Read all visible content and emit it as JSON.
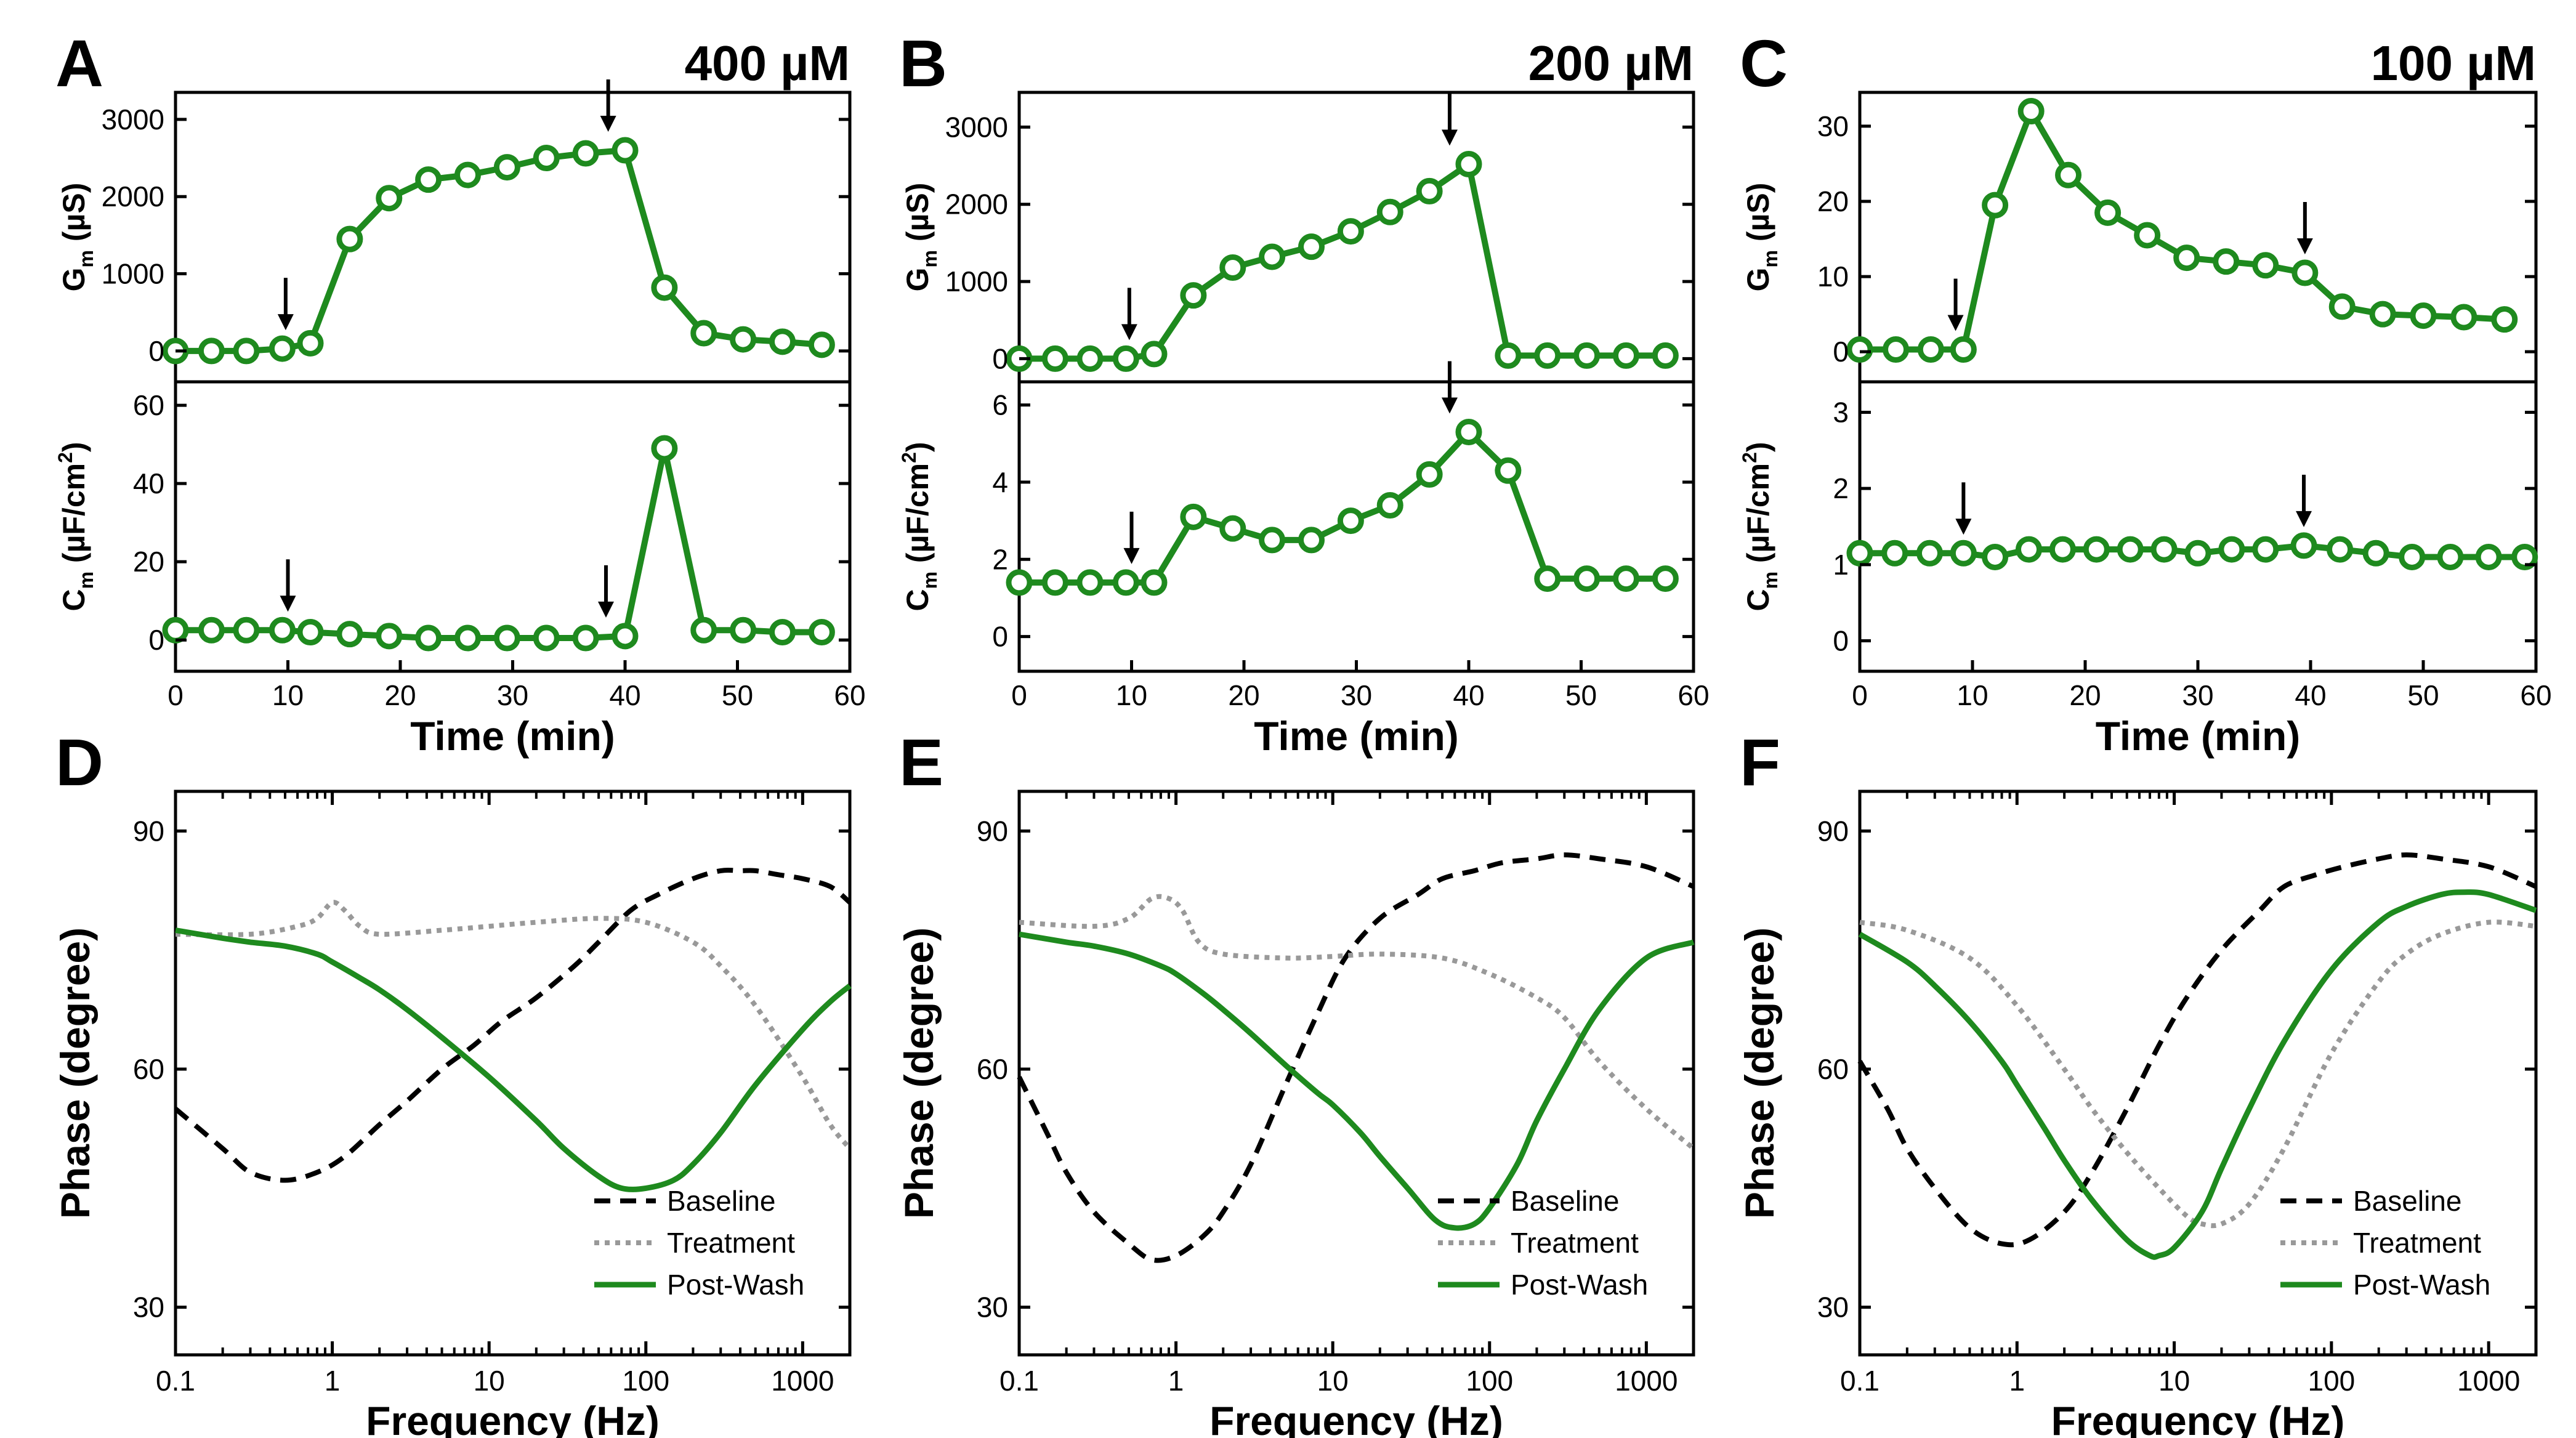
{
  "colors": {
    "green": "#1e8a1e",
    "baseline": "#000000",
    "treatment": "#999999",
    "axis": "#000000",
    "arrow": "#000000"
  },
  "common": {
    "time_xlabel": "Time (min)",
    "freq_xlabel": "Frequency (Hz)",
    "phase_ylabel": "Phase (degree)",
    "gm_ylabel_main": "G",
    "gm_ylabel_sub": "m",
    "gm_ylabel_unit": "(µS)",
    "cm_ylabel_main": "C",
    "cm_ylabel_sub": "m",
    "cm_ylabel_unit_pre": "(µF/cm",
    "cm_ylabel_unit_sup": "2",
    "cm_ylabel_unit_post": ")",
    "legend": [
      "Baseline",
      "Treatment",
      "Post-Wash"
    ]
  },
  "chart_data": [
    {
      "panel": "A",
      "type": "line",
      "title": "400 µM",
      "xlabel": "Time (min)",
      "xlim": [
        0,
        60
      ],
      "xticks": [
        0,
        10,
        20,
        30,
        40,
        50,
        60
      ],
      "gm": {
        "ylim": [
          -400,
          3350
        ],
        "yticks": [
          0,
          1000,
          2000,
          3000
        ],
        "x": [
          0,
          3.2,
          6.3,
          9.5,
          12,
          15.5,
          19,
          22.5,
          26,
          29.5,
          33,
          36.5,
          40,
          43.5,
          47,
          50.5,
          54,
          57.5
        ],
        "y": [
          0,
          0,
          0,
          30,
          100,
          1450,
          1980,
          2220,
          2280,
          2380,
          2500,
          2560,
          2600,
          820,
          230,
          150,
          120,
          80
        ],
        "arrows": [
          {
            "x": 9.8,
            "y": 30
          },
          {
            "x": 38.5,
            "y": 2600
          }
        ]
      },
      "cm": {
        "ylim": [
          -8,
          66
        ],
        "yticks": [
          0,
          20,
          40,
          60
        ],
        "x": [
          0,
          3.2,
          6.3,
          9.5,
          12,
          15.5,
          19,
          22.5,
          26,
          29.5,
          33,
          36.5,
          40,
          43.5,
          47,
          50.5,
          54,
          57.5
        ],
        "y": [
          2.5,
          2.5,
          2.5,
          2.5,
          2,
          1.5,
          1,
          0.5,
          0.5,
          0.5,
          0.5,
          0.5,
          1,
          49,
          2.5,
          2.5,
          2,
          2
        ],
        "arrows": [
          {
            "x": 10,
            "y": 2.5
          },
          {
            "x": 38.3,
            "y": 1
          }
        ]
      },
      "phase": {
        "xlabel": "Frequency (Hz)",
        "ylabel": "Phase (degree)",
        "xlim": [
          0.1,
          2000
        ],
        "xscale": "log",
        "xticks": [
          0.1,
          1,
          10,
          100,
          1000
        ],
        "xticklabels": [
          "0.1",
          "1",
          "10",
          "100",
          "1000"
        ],
        "ylim": [
          24,
          95
        ],
        "yticks": [
          30,
          60,
          90
        ],
        "series": [
          {
            "name": "Baseline",
            "style": "dashed",
            "x": [
              0.1,
              0.2,
              0.3,
              0.5,
              0.8,
              1.2,
              2,
              3,
              5,
              8,
              12,
              20,
              35,
              50,
              80,
              120,
              200,
              300,
              400,
              500,
              700,
              1000,
              1500,
              2000
            ],
            "y": [
              55,
              50,
              47,
              46,
              47,
              49,
              53,
              56,
              60,
              63,
              66,
              69,
              73,
              76,
              80,
              82,
              84,
              85,
              85,
              85,
              84.5,
              84,
              83,
              81
            ]
          },
          {
            "name": "Treatment",
            "style": "dotted",
            "x": [
              0.1,
              0.3,
              0.6,
              0.8,
              1,
              1.2,
              1.5,
              2,
              5,
              10,
              20,
              50,
              100,
              200,
              300,
              500,
              1000,
              1500,
              2000
            ],
            "y": [
              77,
              77,
              78,
              79,
              81,
              80,
              78,
              77,
              77.5,
              78,
              78.5,
              79,
              78.5,
              76,
              73,
              68,
              59,
              53,
              50
            ]
          },
          {
            "name": "Post-Wash",
            "style": "solid",
            "x": [
              0.1,
              0.2,
              0.3,
              0.5,
              0.8,
              1,
              1.5,
              2,
              3,
              5,
              10,
              20,
              30,
              50,
              70,
              100,
              150,
              200,
              300,
              500,
              1000,
              1500,
              2000
            ],
            "y": [
              77.5,
              76.5,
              76,
              75.5,
              74.5,
              73.5,
              71.5,
              70,
              67.5,
              64,
              59,
              53.5,
              50,
              46.5,
              45,
              45,
              46,
              48,
              52,
              58,
              65,
              68.5,
              70.5
            ]
          }
        ]
      }
    },
    {
      "panel": "B",
      "type": "line",
      "title": "200 µM",
      "xlabel": "Time (min)",
      "xlim": [
        0,
        60
      ],
      "xticks": [
        0,
        10,
        20,
        30,
        40,
        50,
        60
      ],
      "gm": {
        "ylim": [
          -300,
          3450
        ],
        "yticks": [
          0,
          1000,
          2000,
          3000
        ],
        "x": [
          0,
          3.2,
          6.3,
          9.5,
          12,
          15.5,
          19,
          22.5,
          26,
          29.5,
          33,
          36.5,
          40,
          43.5,
          47,
          50.5,
          54,
          57.5
        ],
        "y": [
          0,
          0,
          0,
          0,
          60,
          820,
          1180,
          1320,
          1450,
          1650,
          1900,
          2170,
          2520,
          40,
          40,
          40,
          40,
          40
        ],
        "arrows": [
          {
            "x": 9.8,
            "y": 0
          },
          {
            "x": 38.3,
            "y": 2520
          }
        ]
      },
      "cm": {
        "ylim": [
          -0.9,
          6.6
        ],
        "yticks": [
          0,
          2,
          4,
          6
        ],
        "x": [
          0,
          3.2,
          6.3,
          9.5,
          12,
          15.5,
          19,
          22.5,
          26,
          29.5,
          33,
          36.5,
          40,
          43.5,
          47,
          50.5,
          54,
          57.5
        ],
        "y": [
          1.4,
          1.4,
          1.4,
          1.4,
          1.4,
          3.1,
          2.8,
          2.5,
          2.5,
          3.0,
          3.4,
          4.2,
          5.3,
          4.3,
          1.5,
          1.5,
          1.5,
          1.5
        ],
        "arrows": [
          {
            "x": 10,
            "y": 1.4
          },
          {
            "x": 38.3,
            "y": 5.3
          }
        ]
      },
      "phase": {
        "xlabel": "Frequency (Hz)",
        "ylabel": "Phase (degree)",
        "xlim": [
          0.1,
          2000
        ],
        "xscale": "log",
        "xticks": [
          0.1,
          1,
          10,
          100,
          1000
        ],
        "xticklabels": [
          "0.1",
          "1",
          "10",
          "100",
          "1000"
        ],
        "ylim": [
          24,
          95
        ],
        "yticks": [
          30,
          60,
          90
        ],
        "series": [
          {
            "name": "Baseline",
            "style": "dashed",
            "x": [
              0.1,
              0.15,
              0.2,
              0.3,
              0.5,
              0.7,
              1,
              1.5,
              2,
              3,
              5,
              8,
              12,
              20,
              35,
              50,
              80,
              120,
              200,
              300,
              500,
              1000,
              2000
            ],
            "y": [
              59,
              52,
              47,
              42,
              38,
              36,
              36.5,
              39,
              42,
              48,
              58,
              67,
              74,
              79,
              82,
              84,
              85,
              86,
              86.5,
              87,
              86.5,
              85.5,
              83
            ]
          },
          {
            "name": "Treatment",
            "style": "dotted",
            "x": [
              0.1,
              0.3,
              0.5,
              0.7,
              0.9,
              1.1,
              1.4,
              2,
              5,
              10,
              20,
              50,
              100,
              200,
              300,
              500,
              1000,
              2000
            ],
            "y": [
              78.5,
              78,
              79,
              81.5,
              81.5,
              80,
              76,
              74.5,
              74,
              74.2,
              74.5,
              74,
              72,
              69,
              66.5,
              61,
              55,
              50
            ]
          },
          {
            "name": "Post-Wash",
            "style": "solid",
            "x": [
              0.1,
              0.2,
              0.3,
              0.5,
              0.8,
              1,
              1.5,
              2,
              3,
              5,
              8,
              10,
              15,
              20,
              30,
              45,
              60,
              80,
              100,
              150,
              200,
              300,
              500,
              1000,
              2000
            ],
            "y": [
              77,
              76,
              75.5,
              74.5,
              73,
              72,
              69.5,
              67.5,
              64.5,
              60.5,
              57,
              55.5,
              52,
              49,
              45,
              41,
              40,
              40.5,
              42.5,
              48,
              53.5,
              60,
              67.5,
              74,
              76
            ]
          }
        ]
      }
    },
    {
      "panel": "C",
      "type": "line",
      "title": "100 µM",
      "xlabel": "Time (min)",
      "xlim": [
        0,
        60
      ],
      "xticks": [
        0,
        10,
        20,
        30,
        40,
        50,
        60
      ],
      "gm": {
        "ylim": [
          -4,
          34.5
        ],
        "yticks": [
          0,
          10,
          20,
          30
        ],
        "x": [
          0,
          3.2,
          6.3,
          9.2,
          12,
          15.2,
          18.5,
          22,
          25.5,
          29,
          32.5,
          36,
          39.5,
          42.8,
          46.4,
          50,
          53.6,
          57.2
        ],
        "y": [
          0.3,
          0.3,
          0.3,
          0.3,
          19.5,
          32,
          23.5,
          18.5,
          15.5,
          12.5,
          12,
          11.5,
          10.5,
          6,
          5,
          4.8,
          4.6,
          4.3
        ],
        "arrows": [
          {
            "x": 8.5,
            "y": 0.3
          },
          {
            "x": 39.5,
            "y": 10.5
          }
        ]
      },
      "cm": {
        "ylim": [
          -0.4,
          3.4
        ],
        "yticks": [
          0,
          1,
          2,
          3
        ],
        "x": [
          0,
          3.1,
          6.2,
          9.2,
          12,
          15,
          18,
          21,
          24,
          27,
          30,
          33,
          36,
          39.4,
          42.6,
          45.8,
          49,
          52.4,
          55.8,
          59
        ],
        "y": [
          1.15,
          1.15,
          1.15,
          1.15,
          1.1,
          1.2,
          1.2,
          1.2,
          1.2,
          1.2,
          1.15,
          1.2,
          1.2,
          1.25,
          1.2,
          1.15,
          1.1,
          1.1,
          1.1,
          1.1
        ],
        "arrows": [
          {
            "x": 9.2,
            "y": 1.15
          },
          {
            "x": 39.4,
            "y": 1.25
          }
        ]
      },
      "phase": {
        "xlabel": "Frequency (Hz)",
        "ylabel": "Phase (degree)",
        "xlim": [
          0.1,
          2000
        ],
        "xscale": "log",
        "xticks": [
          0.1,
          1,
          10,
          100,
          1000
        ],
        "xticklabels": [
          "0.1",
          "1",
          "10",
          "100",
          "1000"
        ],
        "ylim": [
          24,
          95
        ],
        "yticks": [
          30,
          60,
          90
        ],
        "series": [
          {
            "name": "Baseline",
            "style": "dashed",
            "x": [
              0.1,
              0.15,
              0.2,
              0.3,
              0.5,
              0.8,
              1.2,
              2,
              3,
              5,
              8,
              12,
              20,
              35,
              50,
              80,
              120,
              200,
              300,
              500,
              1000,
              2000
            ],
            "y": [
              61,
              55,
              50,
              45,
              40,
              38,
              38.5,
              42,
              47,
              55,
              63,
              69,
              75,
              80,
              83,
              84.5,
              85.5,
              86.5,
              87,
              86.5,
              85.5,
              83
            ]
          },
          {
            "name": "Treatment",
            "style": "dotted",
            "x": [
              0.1,
              0.2,
              0.5,
              1,
              2,
              3,
              5,
              8,
              12,
              15,
              20,
              30,
              50,
              100,
              200,
              300,
              500,
              1000,
              2000
            ],
            "y": [
              78.5,
              77.5,
              74,
              68,
              60,
              55,
              49.5,
              45,
              41.5,
              40.5,
              40.5,
              43,
              50,
              62,
              71,
              74.5,
              77,
              78.5,
              78
            ]
          },
          {
            "name": "Post-Wash",
            "style": "solid",
            "x": [
              0.1,
              0.2,
              0.3,
              0.5,
              0.8,
              1,
              1.5,
              2,
              3,
              5,
              7,
              8,
              10,
              15,
              20,
              30,
              50,
              100,
              200,
              300,
              500,
              700,
              1000,
              2000
            ],
            "y": [
              77,
              73.5,
              70.5,
              66,
              61,
              58,
              52.5,
              48.5,
              43.5,
              38.5,
              36.5,
              36.5,
              37.5,
              42,
              47.5,
              55,
              63.5,
              72.5,
              78.5,
              80.5,
              82,
              82.3,
              82,
              80
            ]
          }
        ]
      }
    }
  ]
}
